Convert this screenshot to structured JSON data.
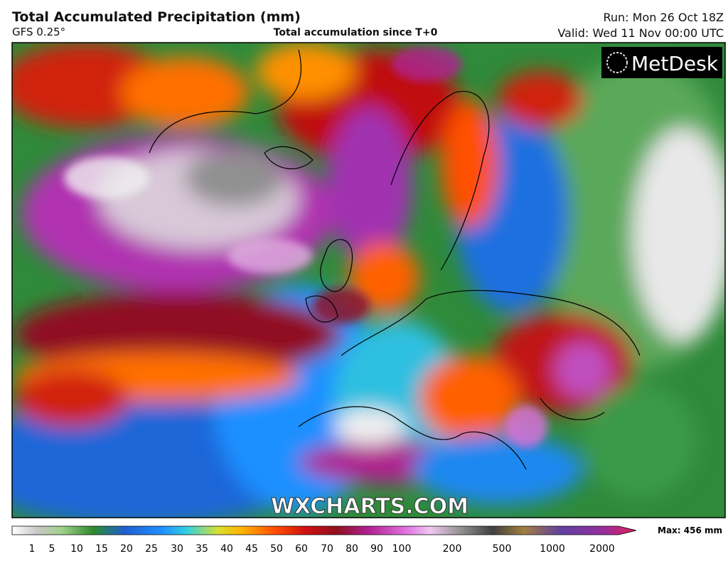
{
  "header": {
    "title": "Total Accumulated Precipitation (mm)",
    "model": "GFS 0.25°",
    "subtitle": "Total accumulation since T+0",
    "run": "Run: Mon 26 Oct 18Z",
    "valid": "Valid: Wed 11 Nov 00:00 UTC"
  },
  "map": {
    "logo": "MetDesk",
    "watermark": "WXCHARTS.COM"
  },
  "legend": {
    "ticks": [
      1,
      5,
      10,
      15,
      20,
      25,
      30,
      35,
      40,
      45,
      50,
      60,
      70,
      80,
      90,
      100,
      200,
      500,
      1000,
      2000
    ],
    "max_label": "Max: 456 mm"
  }
}
